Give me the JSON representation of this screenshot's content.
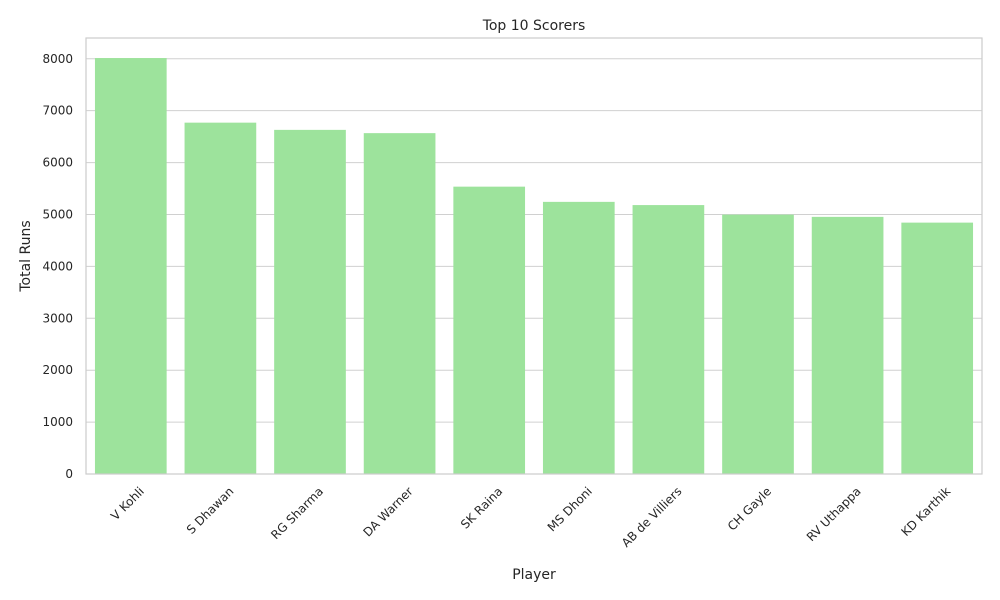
{
  "chart_data": {
    "type": "bar",
    "title": "Top 10 Scorers",
    "xlabel": "Player",
    "ylabel": "Total Runs",
    "categories": [
      "V Kohli",
      "S Dhawan",
      "RG Sharma",
      "DA Warner",
      "SK Raina",
      "MS Dhoni",
      "AB de Villiers",
      "CH Gayle",
      "RV Uthappa",
      "KD Karthik"
    ],
    "values": [
      8014,
      6769,
      6630,
      6567,
      5536,
      5243,
      5181,
      4997,
      4954,
      4843
    ],
    "ylim": [
      0,
      8400
    ],
    "yticks": [
      0,
      1000,
      2000,
      3000,
      4000,
      5000,
      6000,
      7000,
      8000
    ],
    "grid": "horizontal",
    "colors": {
      "bar": "#9de39c",
      "grid": "#d0d0d0",
      "frame": "#cccccc"
    }
  }
}
